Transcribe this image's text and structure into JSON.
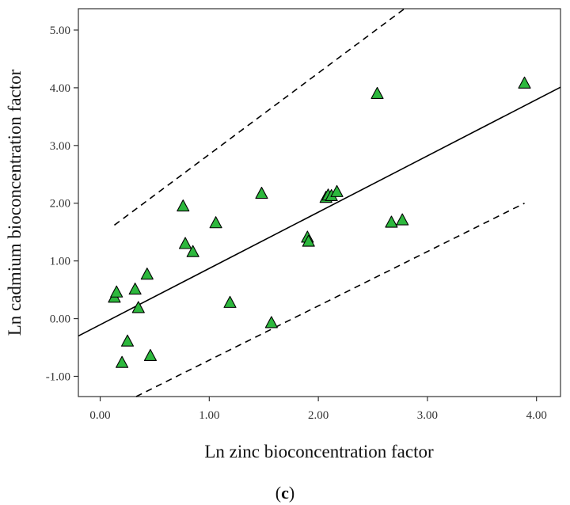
{
  "chart_data": {
    "type": "scatter",
    "xlabel": "Ln zinc bioconcentration factor",
    "ylabel": "Ln cadmium bioconcentration factor",
    "panel_label": {
      "open": "(",
      "letter": "c",
      "close": ")"
    },
    "xlim": [
      -0.2,
      4.22
    ],
    "ylim": [
      -1.35,
      5.37
    ],
    "x_ticks": [
      0.0,
      1.0,
      2.0,
      3.0,
      4.0
    ],
    "x_tick_labels": [
      "0.00",
      "1.00",
      "2.00",
      "3.00",
      "4.00"
    ],
    "y_ticks": [
      -1.0,
      0.0,
      1.0,
      2.0,
      3.0,
      4.0,
      5.0
    ],
    "y_tick_labels": [
      "-1.00",
      "0.00",
      "1.00",
      "2.00",
      "3.00",
      "4.00",
      "5.00"
    ],
    "grid": false,
    "marker": "triangle",
    "marker_color": "#2db83d",
    "marker_edge_color": "#000000",
    "points": [
      {
        "x": 0.13,
        "y": 0.36
      },
      {
        "x": 0.15,
        "y": 0.45
      },
      {
        "x": 0.2,
        "y": -0.77
      },
      {
        "x": 0.25,
        "y": -0.4
      },
      {
        "x": 0.32,
        "y": 0.5
      },
      {
        "x": 0.35,
        "y": 0.18
      },
      {
        "x": 0.43,
        "y": 0.76
      },
      {
        "x": 0.46,
        "y": -0.65
      },
      {
        "x": 0.76,
        "y": 1.94
      },
      {
        "x": 0.78,
        "y": 1.29
      },
      {
        "x": 0.85,
        "y": 1.15
      },
      {
        "x": 1.06,
        "y": 1.65
      },
      {
        "x": 1.19,
        "y": 0.27
      },
      {
        "x": 1.48,
        "y": 2.16
      },
      {
        "x": 1.57,
        "y": -0.08
      },
      {
        "x": 1.9,
        "y": 1.4
      },
      {
        "x": 1.91,
        "y": 1.33
      },
      {
        "x": 2.07,
        "y": 2.09
      },
      {
        "x": 2.09,
        "y": 2.13
      },
      {
        "x": 2.12,
        "y": 2.12
      },
      {
        "x": 2.17,
        "y": 2.19
      },
      {
        "x": 2.54,
        "y": 3.89
      },
      {
        "x": 2.67,
        "y": 1.66
      },
      {
        "x": 2.77,
        "y": 1.7
      },
      {
        "x": 3.89,
        "y": 4.07
      }
    ],
    "fit_line": {
      "x": [
        -0.2,
        4.22
      ],
      "y": [
        -0.3,
        4.01
      ]
    },
    "prediction_upper": {
      "x": [
        0.13,
        2.79
      ],
      "y": [
        1.62,
        5.37
      ]
    },
    "prediction_lower": {
      "x": [
        0.33,
        3.89
      ],
      "y": [
        -1.35,
        2.0
      ]
    }
  }
}
